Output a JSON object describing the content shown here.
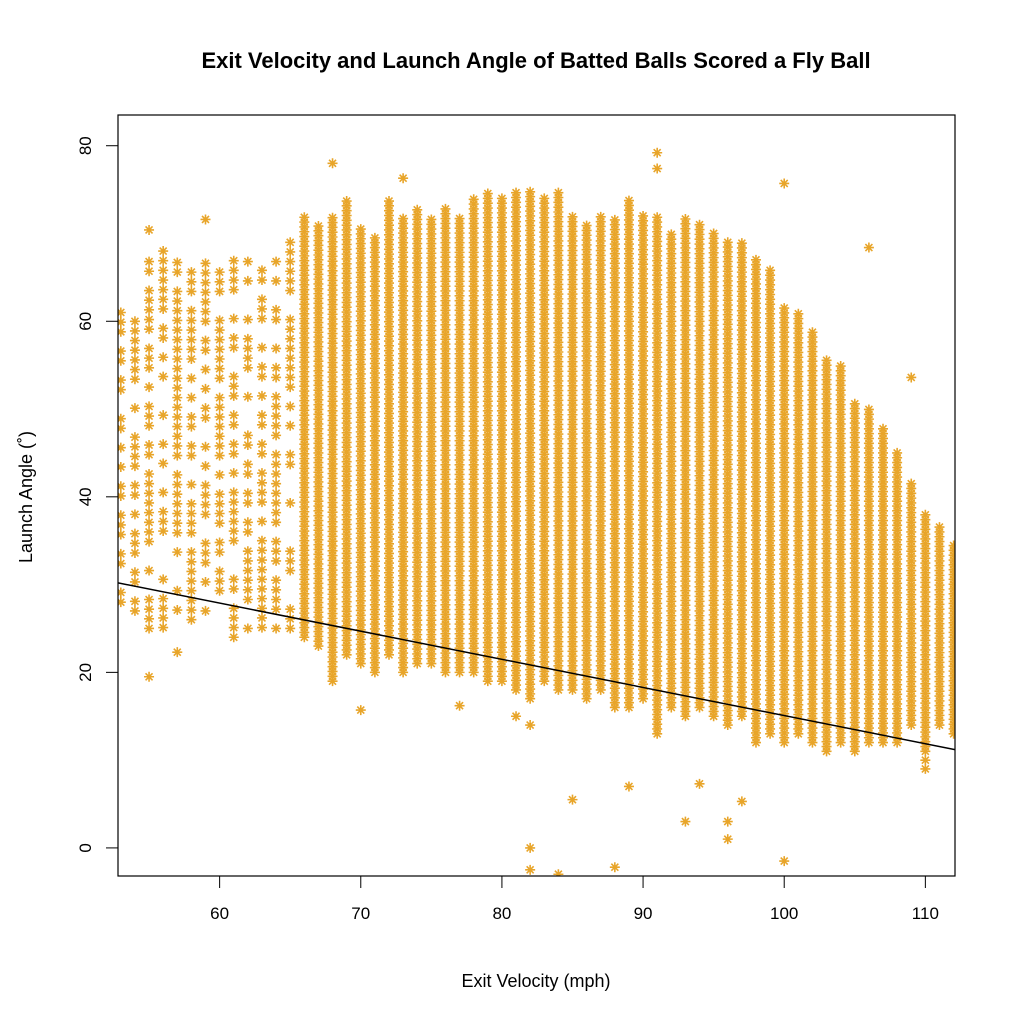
{
  "chart_data": {
    "type": "scatter",
    "title": "Exit Velocity and Launch Angle of Batted Balls Scored a Fly Ball",
    "xlabel": "Exit Velocity (mph)",
    "ylabel": "Launch Angle (˚)",
    "xlim": [
      52.8,
      112.1
    ],
    "ylim": [
      -3.2,
      83.5
    ],
    "xticks": [
      "60",
      "70",
      "80",
      "90",
      "100",
      "110"
    ],
    "yticks": [
      "0",
      "20",
      "40",
      "60",
      "80"
    ],
    "grid": false,
    "marker": "asterisk",
    "point_color": "#E8A52A",
    "line_color": "#000000",
    "trend_line": {
      "x": [
        52.8,
        112.1
      ],
      "y": [
        30.2,
        11.2
      ]
    },
    "columns_note_units": "mph / degrees",
    "point_columns": [
      {
        "x": 53,
        "ymin": 28,
        "ymax": 64
      },
      {
        "x": 54,
        "ymin": 27,
        "ymax": 61
      },
      {
        "x": 55,
        "ymin": 25,
        "ymax": 70
      },
      {
        "x": 56,
        "ymin": 24,
        "ymax": 69
      },
      {
        "x": 57,
        "ymin": 26,
        "ymax": 67
      },
      {
        "x": 58,
        "ymin": 26,
        "ymax": 66
      },
      {
        "x": 59,
        "ymin": 27,
        "ymax": 67
      },
      {
        "x": 60,
        "ymin": 26,
        "ymax": 66
      },
      {
        "x": 61,
        "ymin": 24,
        "ymax": 67
      },
      {
        "x": 62,
        "ymin": 25,
        "ymax": 67
      },
      {
        "x": 63,
        "ymin": 24,
        "ymax": 66
      },
      {
        "x": 64,
        "ymin": 25,
        "ymax": 67
      },
      {
        "x": 65,
        "ymin": 25,
        "ymax": 70
      },
      {
        "x": 66,
        "ymin": 24,
        "ymax": 72
      },
      {
        "x": 67,
        "ymin": 23,
        "ymax": 71
      },
      {
        "x": 68,
        "ymin": 19,
        "ymax": 72
      },
      {
        "x": 69,
        "ymin": 22,
        "ymax": 74
      },
      {
        "x": 70,
        "ymin": 21,
        "ymax": 71
      },
      {
        "x": 71,
        "ymin": 20,
        "ymax": 70
      },
      {
        "x": 72,
        "ymin": 22,
        "ymax": 74
      },
      {
        "x": 73,
        "ymin": 20,
        "ymax": 72
      },
      {
        "x": 74,
        "ymin": 21,
        "ymax": 73
      },
      {
        "x": 75,
        "ymin": 21,
        "ymax": 72
      },
      {
        "x": 76,
        "ymin": 20,
        "ymax": 73
      },
      {
        "x": 77,
        "ymin": 20,
        "ymax": 72
      },
      {
        "x": 78,
        "ymin": 20,
        "ymax": 74
      },
      {
        "x": 79,
        "ymin": 19,
        "ymax": 75
      },
      {
        "x": 80,
        "ymin": 19,
        "ymax": 74
      },
      {
        "x": 81,
        "ymin": 18,
        "ymax": 75
      },
      {
        "x": 82,
        "ymin": 17,
        "ymax": 75
      },
      {
        "x": 83,
        "ymin": 19,
        "ymax": 74
      },
      {
        "x": 84,
        "ymin": 18,
        "ymax": 75
      },
      {
        "x": 85,
        "ymin": 18,
        "ymax": 72
      },
      {
        "x": 86,
        "ymin": 17,
        "ymax": 71
      },
      {
        "x": 87,
        "ymin": 18,
        "ymax": 72
      },
      {
        "x": 88,
        "ymin": 16,
        "ymax": 72
      },
      {
        "x": 89,
        "ymin": 16,
        "ymax": 74
      },
      {
        "x": 90,
        "ymin": 17,
        "ymax": 72
      },
      {
        "x": 91,
        "ymin": 13,
        "ymax": 72
      },
      {
        "x": 92,
        "ymin": 16,
        "ymax": 70
      },
      {
        "x": 93,
        "ymin": 15,
        "ymax": 72
      },
      {
        "x": 94,
        "ymin": 16,
        "ymax": 71
      },
      {
        "x": 95,
        "ymin": 15,
        "ymax": 70
      },
      {
        "x": 96,
        "ymin": 14,
        "ymax": 69
      },
      {
        "x": 97,
        "ymin": 15,
        "ymax": 69
      },
      {
        "x": 98,
        "ymin": 12,
        "ymax": 67
      },
      {
        "x": 99,
        "ymin": 13,
        "ymax": 66
      },
      {
        "x": 100,
        "ymin": 12,
        "ymax": 62
      },
      {
        "x": 101,
        "ymin": 13,
        "ymax": 61
      },
      {
        "x": 102,
        "ymin": 12,
        "ymax": 59
      },
      {
        "x": 103,
        "ymin": 11,
        "ymax": 56
      },
      {
        "x": 104,
        "ymin": 12,
        "ymax": 55
      },
      {
        "x": 105,
        "ymin": 11,
        "ymax": 51
      },
      {
        "x": 106,
        "ymin": 12,
        "ymax": 50
      },
      {
        "x": 107,
        "ymin": 12,
        "ymax": 48
      },
      {
        "x": 108,
        "ymin": 12,
        "ymax": 45
      },
      {
        "x": 109,
        "ymin": 14,
        "ymax": 42
      },
      {
        "x": 110,
        "ymin": 11,
        "ymax": 38
      },
      {
        "x": 111,
        "ymin": 14,
        "ymax": 37
      },
      {
        "x": 112,
        "ymin": 13,
        "ymax": 35
      }
    ],
    "outliers": [
      {
        "x": 55,
        "y": 19.5
      },
      {
        "x": 57,
        "y": 22.3
      },
      {
        "x": 55,
        "y": 70.4
      },
      {
        "x": 59,
        "y": 71.6
      },
      {
        "x": 68,
        "y": 78
      },
      {
        "x": 73,
        "y": 76.3
      },
      {
        "x": 91,
        "y": 79.2
      },
      {
        "x": 91,
        "y": 77.4
      },
      {
        "x": 100,
        "y": 75.7
      },
      {
        "x": 106,
        "y": 68.4
      },
      {
        "x": 109,
        "y": 53.6
      },
      {
        "x": 70,
        "y": 15.7
      },
      {
        "x": 77,
        "y": 16.2
      },
      {
        "x": 82,
        "y": 14
      },
      {
        "x": 81,
        "y": 15
      },
      {
        "x": 82,
        "y": 0
      },
      {
        "x": 82,
        "y": -2.5
      },
      {
        "x": 84,
        "y": -3
      },
      {
        "x": 85,
        "y": 5.5
      },
      {
        "x": 88,
        "y": -2.2
      },
      {
        "x": 89,
        "y": 7
      },
      {
        "x": 93,
        "y": 3
      },
      {
        "x": 94,
        "y": 7.3
      },
      {
        "x": 96,
        "y": 3
      },
      {
        "x": 96,
        "y": 1
      },
      {
        "x": 97,
        "y": 5.3
      },
      {
        "x": 100,
        "y": -1.5
      },
      {
        "x": 110,
        "y": 9
      },
      {
        "x": 110,
        "y": 10
      }
    ]
  }
}
